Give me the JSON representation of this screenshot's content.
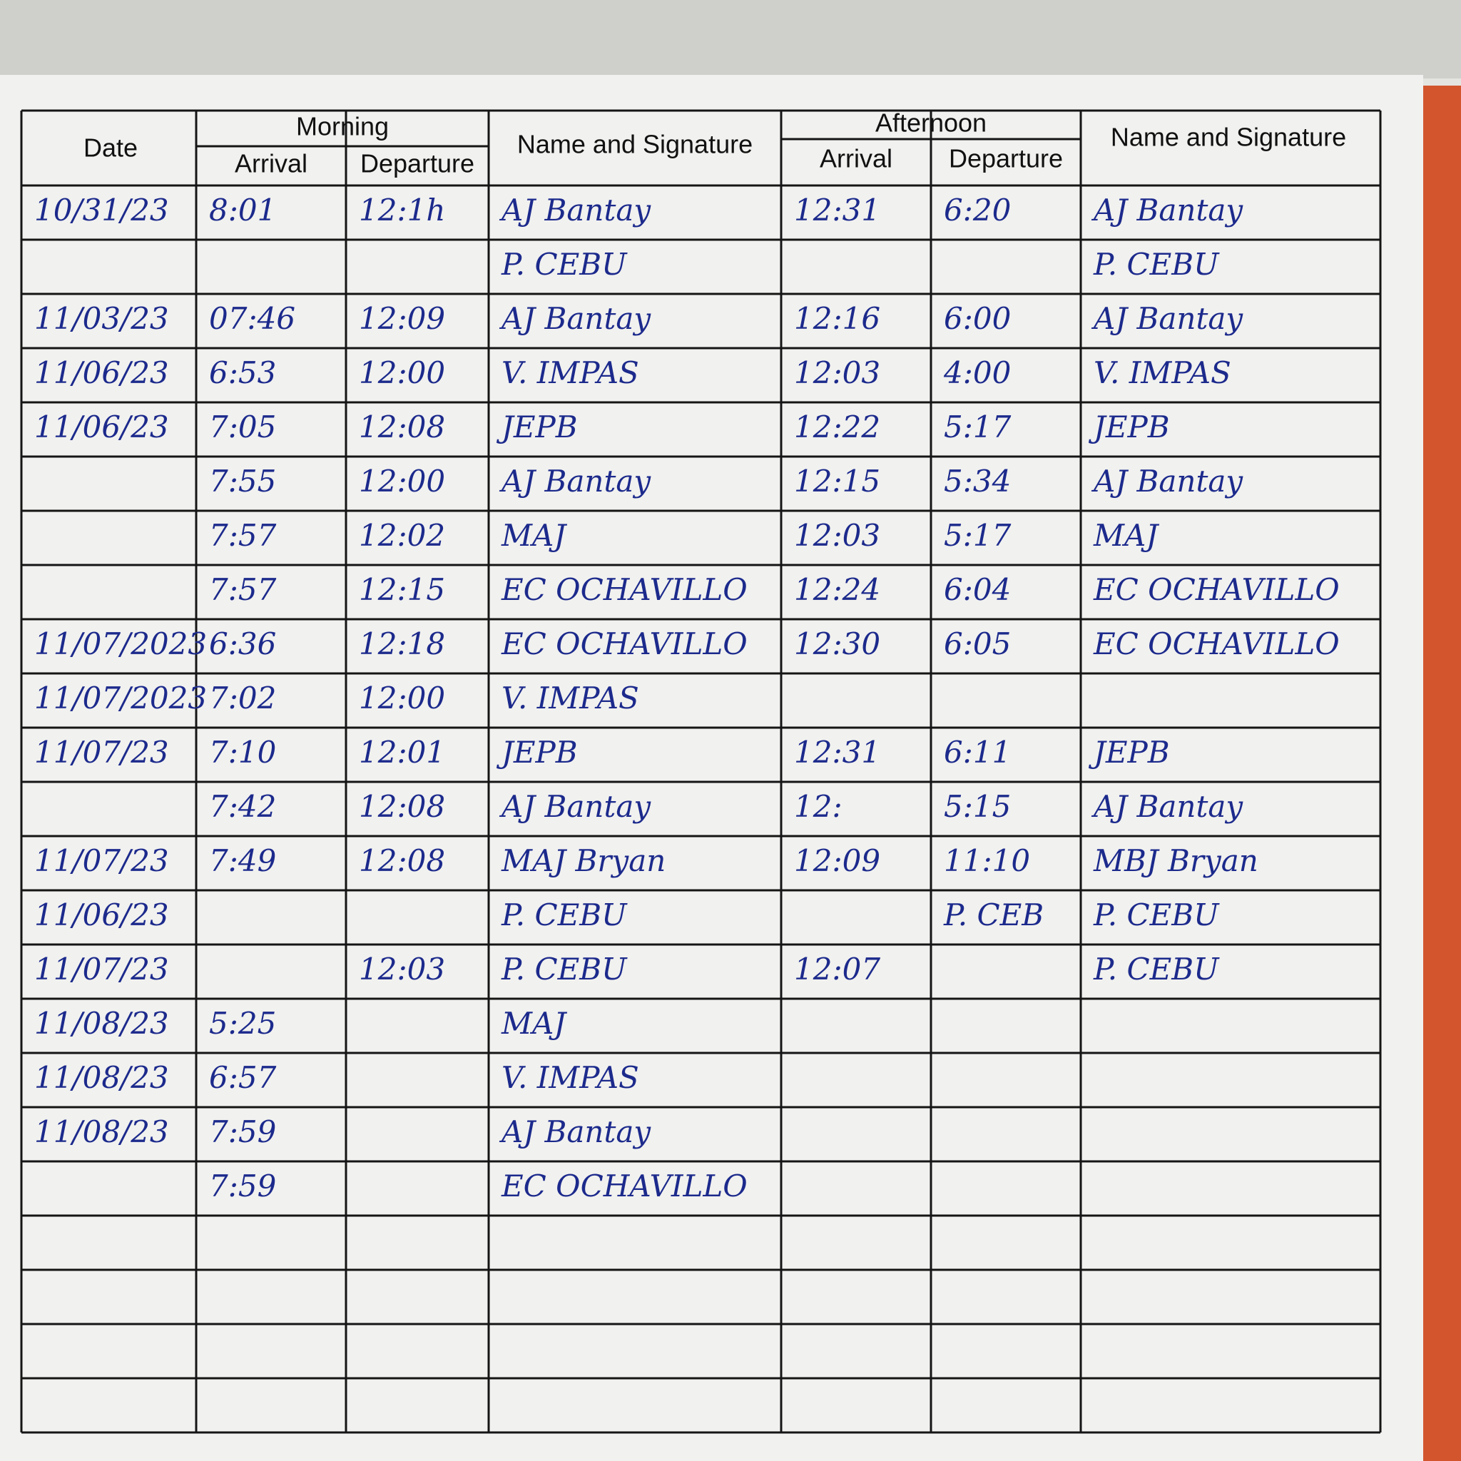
{
  "header": {
    "date": "Date",
    "morning": "Morning",
    "afternoon": "Afternoon",
    "am_arrival": "Arrival",
    "am_departure": "Departure",
    "am_name": "Name and Signature",
    "pm_arrival": "Arrival",
    "pm_departure": "Departure",
    "pm_name": "Name and Signature"
  },
  "table": {
    "rows": [
      [
        "10/31/23",
        "8:01",
        "12:1h",
        "AJ Bantay",
        "12:31",
        "6:20",
        "AJ Bantay"
      ],
      [
        null,
        null,
        null,
        "P. CEBU",
        null,
        null,
        "P. CEBU"
      ],
      [
        "11/03/23",
        "07:46",
        "12:09",
        "AJ Bantay",
        "12:16",
        "6:00",
        "AJ Bantay"
      ],
      [
        "11/06/23",
        "6:53",
        "12:00",
        "V. IMPAS",
        "12:03",
        "4:00",
        "V. IMPAS"
      ],
      [
        "11/06/23",
        "7:05",
        "12:08",
        "JEPB",
        "12:22",
        "5:17",
        "JEPB"
      ],
      [
        null,
        "7:55",
        "12:00",
        "AJ Bantay",
        "12:15",
        "5:34",
        "AJ Bantay"
      ],
      [
        null,
        "7:57",
        "12:02",
        "MAJ",
        "12:03",
        "5:17",
        "MAJ"
      ],
      [
        null,
        "7:57",
        "12:15",
        "EC OCHAVILLO",
        "12:24",
        "6:04",
        "EC OCHAVILLO"
      ],
      [
        "11/07/2023",
        "6:36",
        "12:18",
        "EC OCHAVILLO",
        "12:30",
        "6:05",
        "EC OCHAVILLO"
      ],
      [
        "11/07/2023",
        "7:02",
        "12:00",
        "V. IMPAS",
        null,
        null,
        null
      ],
      [
        "11/07/23",
        "7:10",
        "12:01",
        "JEPB",
        "12:31",
        "6:11",
        "JEPB"
      ],
      [
        null,
        "7:42",
        "12:08",
        "AJ Bantay",
        "12:",
        "5:15",
        "AJ Bantay"
      ],
      [
        "11/07/23",
        "7:49",
        "12:08",
        "MAJ Bryan",
        "12:09",
        "11:10",
        "MBJ Bryan"
      ],
      [
        "11/06/23",
        null,
        null,
        "P. CEBU",
        null,
        "P. CEB",
        "P. CEBU"
      ],
      [
        "11/07/23",
        null,
        "12:03",
        "P. CEBU",
        "12:07",
        null,
        "P. CEBU"
      ],
      [
        "11/08/23",
        "5:25",
        null,
        "MAJ",
        null,
        null,
        null
      ],
      [
        "11/08/23",
        "6:57",
        null,
        "V. IMPAS",
        null,
        null,
        null
      ],
      [
        "11/08/23",
        "7:59",
        null,
        "AJ Bantay",
        null,
        null,
        null
      ],
      [
        null,
        "7:59",
        null,
        "EC OCHAVILLO",
        null,
        null,
        null
      ]
    ]
  }
}
